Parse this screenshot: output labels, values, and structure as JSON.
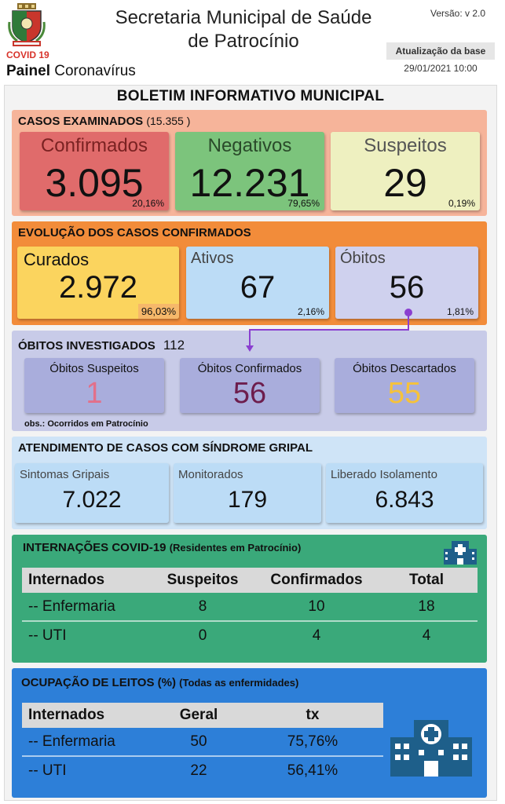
{
  "header": {
    "covid_label": "COVID 19",
    "panel_bold": "Painel",
    "panel_rest": "Coronavírus",
    "title_line1": "Secretaria Municipal de Saúde",
    "title_line2": "de Patrocínio",
    "version": "Versão: v 2.0",
    "update_label": "Atualização da base",
    "update_date": "29/01/2021 10:00"
  },
  "bulletin": {
    "title": "BOLETIM INFORMATIVO MUNICIPAL"
  },
  "casos_examinados": {
    "title": "CASOS EXAMINADOS",
    "total": "(15.355  )",
    "confirmados": {
      "label": "Confirmados",
      "value": "3.095",
      "pct": "20,16%"
    },
    "negativos": {
      "label": "Negativos",
      "value": "12.231",
      "pct": "79,65%"
    },
    "suspeitos": {
      "label": "Suspeitos",
      "value": "29",
      "pct": "0,19%"
    }
  },
  "evolucao": {
    "title": "EVOLUÇÃO DOS CASOS CONFIRMADOS",
    "curados": {
      "label": "Curados",
      "value": "2.972",
      "pct": "96,03%"
    },
    "ativos": {
      "label": "Ativos",
      "value": "67",
      "pct": "2,16%"
    },
    "obitos": {
      "label": "Óbitos",
      "value": "56",
      "pct": "1,81%"
    }
  },
  "obitos_investigados": {
    "title": "ÓBITOS INVESTIGADOS",
    "total": "112",
    "suspeitos": {
      "label": "Óbitos Suspeitos",
      "value": "1"
    },
    "confirmados": {
      "label": "Óbitos Confirmados",
      "value": "56"
    },
    "descartados": {
      "label": "Óbitos Descartados",
      "value": "55"
    },
    "obs": "obs.: Ocorridos em Patrocínio"
  },
  "sindrome_gripal": {
    "title": "ATENDIMENTO DE CASOS COM SÍNDROME GRIPAL",
    "sintomas": {
      "label": "Sintomas Gripais",
      "value": "7.022"
    },
    "monitorados": {
      "label": "Monitorados",
      "value": "179"
    },
    "liberado": {
      "label": "Liberado Isolamento",
      "value": "6.843"
    }
  },
  "internacoes": {
    "title": "INTERNAÇÕES COVID-19",
    "subtitle": "(Residentes em Patrocínio)",
    "columns": [
      "Internados",
      "Suspeitos",
      "Confirmados",
      "Total"
    ],
    "rows": [
      [
        "-- Enfermaria",
        "8",
        "10",
        "18"
      ],
      [
        "-- UTI",
        "0",
        "4",
        "4"
      ]
    ]
  },
  "ocupacao": {
    "title": "OCUPAÇÃO DE LEITOS (%)",
    "subtitle": "(Todas as enfermidades)",
    "columns": [
      "Internados",
      "Geral",
      "tx"
    ],
    "rows": [
      [
        "-- Enfermaria",
        "50",
        "75,76%"
      ],
      [
        "-- UTI",
        "22",
        "56,41%"
      ]
    ]
  },
  "icons": [
    "city-crest-icon",
    "hospital-icon",
    "hospital-large-icon"
  ],
  "colors": {
    "casos_bg": "#f6b49a",
    "confirmados": "#e06b6b",
    "negativos": "#7cc47c",
    "suspeitos": "#eef0c0",
    "evolucao_bg": "#f28c3a",
    "curados": "#fbd45e",
    "ativos": "#bcdcf6",
    "obitos": "#cfd1ee",
    "obitos_inv_bg": "#c8cbe8",
    "obitos_card": "#a9addc",
    "obito_susp": "#e2708a",
    "obito_conf": "#6d1d4d",
    "obito_desc": "#f6c23a",
    "sindrome_bg": "#cfe4f7",
    "sindrome_card": "#bcdcf6",
    "internacoes_bg": "#3aa97a",
    "ocupacao_bg": "#2d7fd8"
  }
}
